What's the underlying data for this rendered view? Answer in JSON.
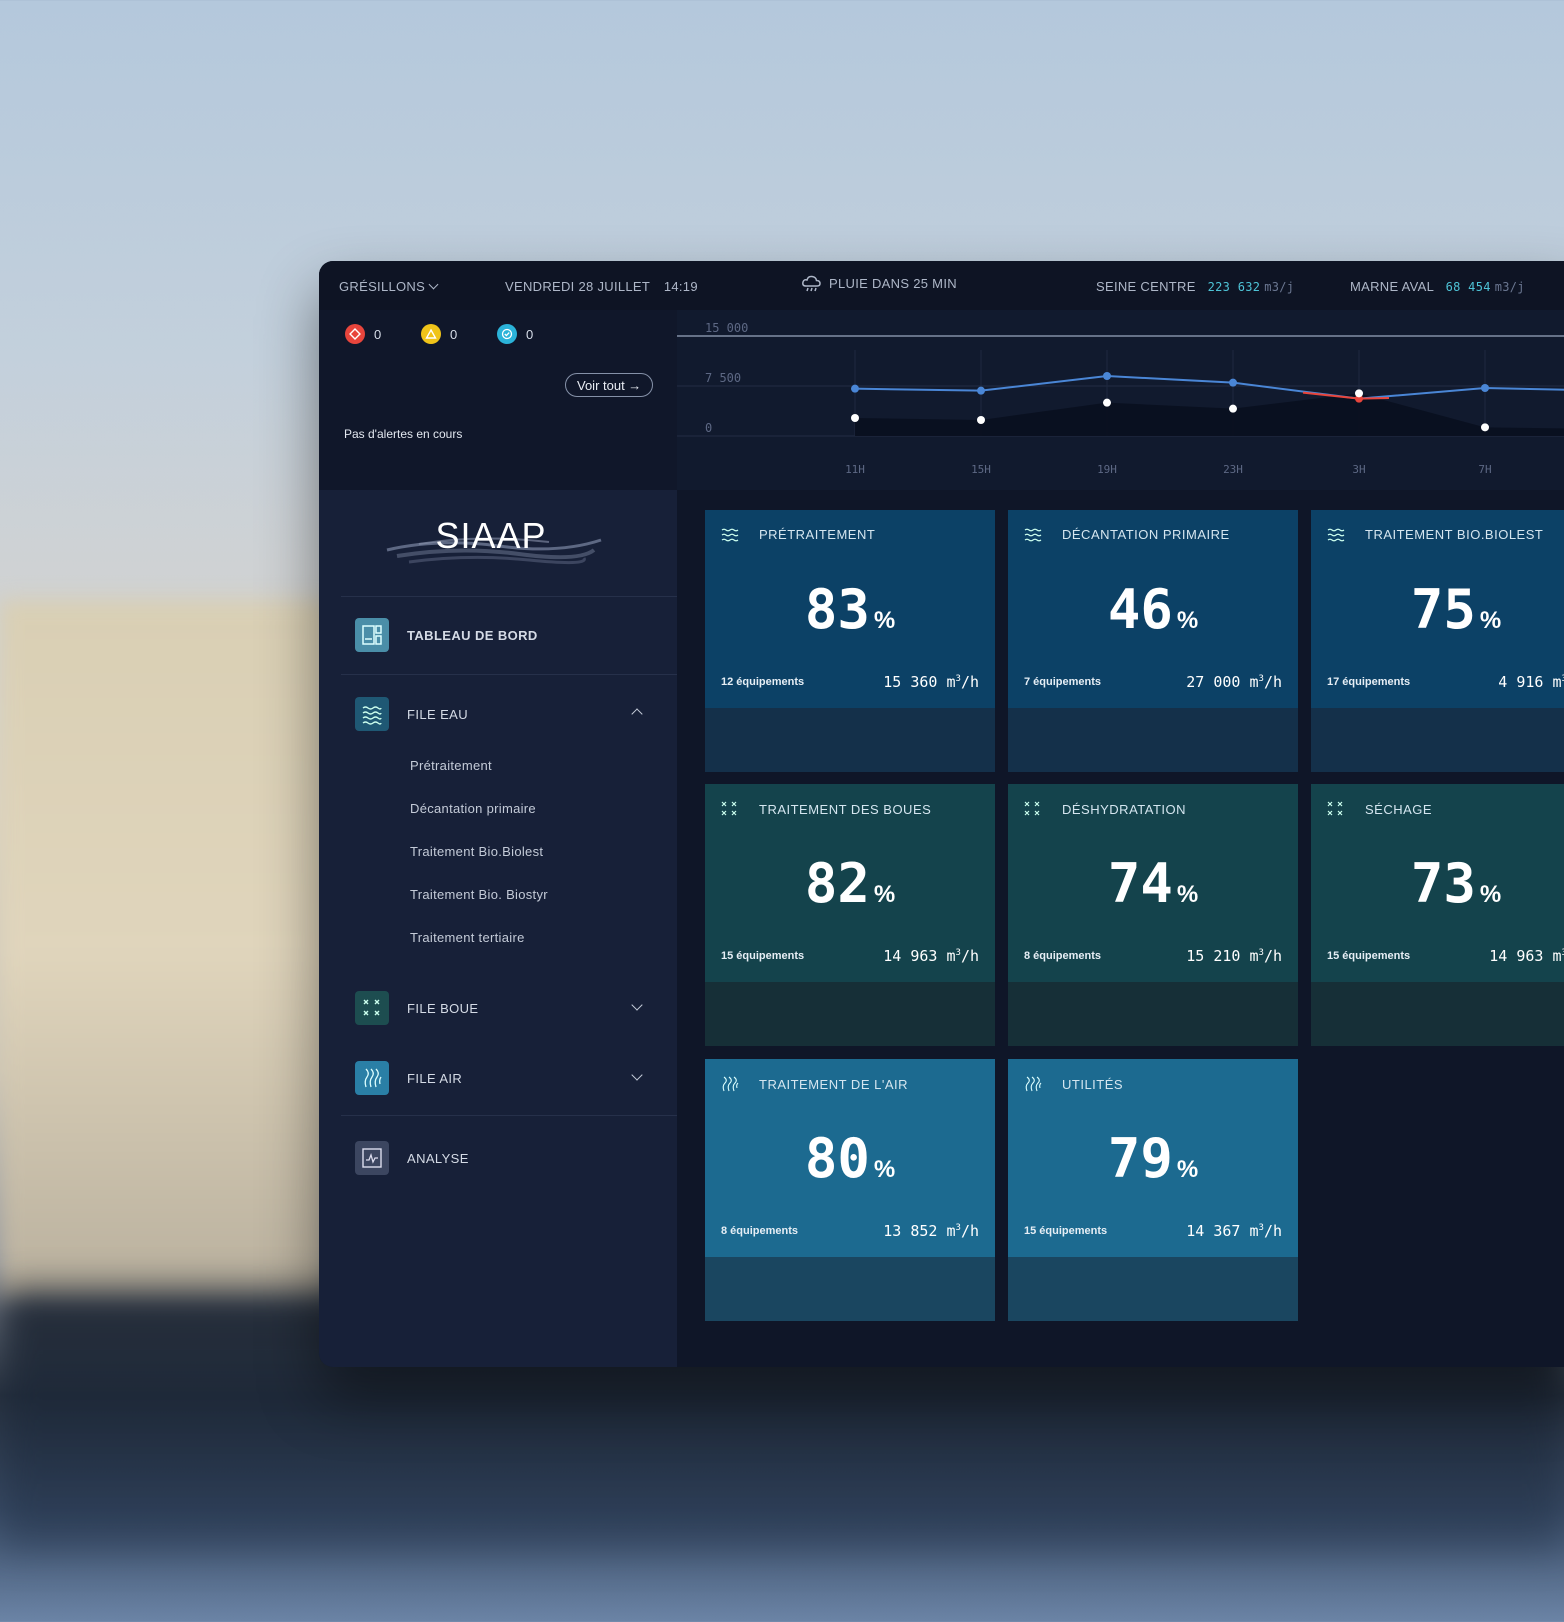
{
  "topbar": {
    "site": "GRÉSILLONS",
    "date": "VENDREDI 28 JUILLET",
    "time": "14:19",
    "weather": "PLUIE DANS 25 MIN",
    "seine_label": "SEINE CENTRE",
    "seine_value": "223 632",
    "seine_unit": "m3/j",
    "marne_label": "MARNE AVAL",
    "marne_value": "68 454",
    "marne_unit": "m3/j"
  },
  "alerts": {
    "red_count": "0",
    "yellow_count": "0",
    "blue_count": "0",
    "see_all": "Voir tout →",
    "empty_message": "Pas d'alertes en cours"
  },
  "chart_data": {
    "type": "line",
    "categories": [
      "11H",
      "15H",
      "19H",
      "23H",
      "3H",
      "7H"
    ],
    "y_ticks": [
      "15 000",
      "7 500",
      "0"
    ],
    "ylim": [
      0,
      15000
    ],
    "series": [
      {
        "values": [
          7100,
          6800,
          9000,
          8000,
          5600,
          7200
        ]
      },
      {
        "values": [
          2700,
          2400,
          5000,
          4100,
          6400,
          1300
        ]
      }
    ],
    "grid": true,
    "legend": "none"
  },
  "sidebar": {
    "logo": "SIAAP",
    "dashboard": "TABLEAU DE BORD",
    "file_eau": "FILE EAU",
    "file_eau_items": [
      "Prétraitement",
      "Décantation primaire",
      "Traitement Bio.Biolest",
      "Traitement Bio. Biostyr",
      "Traitement tertiaire"
    ],
    "file_boue": "FILE BOUE",
    "file_air": "FILE AIR",
    "analyse": "ANALYSE"
  },
  "cards": [
    {
      "title": "PRÉTRAITEMENT",
      "pct": "83",
      "equip": "12 équipements",
      "flow": "15 360",
      "theme": "blue",
      "icon": "waves-icon"
    },
    {
      "title": "DÉCANTATION PRIMAIRE",
      "pct": "46",
      "equip": "7 équipements",
      "flow": "27 000",
      "theme": "blue",
      "icon": "waves-icon"
    },
    {
      "title": "TRAITEMENT BIO.BIOLEST",
      "pct": "75",
      "equip": "17 équipements",
      "flow": "4 916",
      "theme": "blue",
      "icon": "waves-icon"
    },
    {
      "title": "TRAITEMENT DES BOUES",
      "pct": "82",
      "equip": "15 équipements",
      "flow": "14 963",
      "theme": "teal",
      "icon": "crosses-icon"
    },
    {
      "title": "DÉSHYDRATATION",
      "pct": "74",
      "equip": "8 équipements",
      "flow": "15 210",
      "theme": "teal",
      "icon": "crosses-icon"
    },
    {
      "title": "SÉCHAGE",
      "pct": "73",
      "equip": "15 équipements",
      "flow": "14 963",
      "theme": "teal",
      "icon": "crosses-icon"
    },
    {
      "title": "TRAITEMENT DE L'AIR",
      "pct": "80",
      "equip": "8 équipements",
      "flow": "13 852",
      "theme": "sky",
      "icon": "air-icon"
    },
    {
      "title": "UTILITÉS",
      "pct": "79",
      "equip": "15 équipements",
      "flow": "14 367",
      "theme": "sky",
      "icon": "air-icon"
    }
  ],
  "units": {
    "percent": "%",
    "flow_prefix": "m",
    "flow_sup": "3",
    "flow_suffix": "/h"
  },
  "colors": {
    "accent": "#4ec3d6",
    "alert_red": "#e8453c",
    "alert_yellow": "#f0c419",
    "alert_blue": "#2bb3d9",
    "line": "#4a86d6",
    "line_alert": "#e8453c"
  }
}
